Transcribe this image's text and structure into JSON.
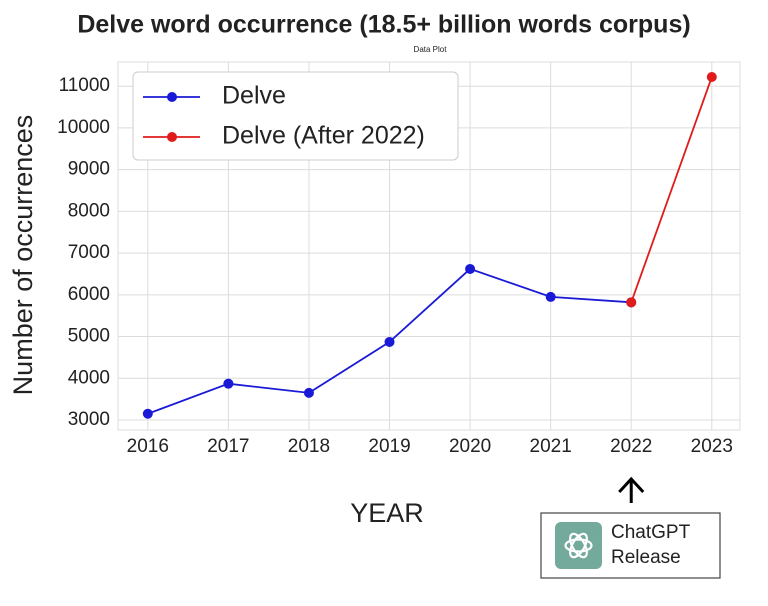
{
  "chart_data": {
    "type": "line",
    "title": "Delve word occurrence (18.5+ billion words corpus)",
    "subtitle": "Data Plot",
    "x_label": "YEAR",
    "y_label": "Number of occurrences",
    "x": [
      2016,
      2017,
      2018,
      2019,
      2020,
      2021,
      2022,
      2023
    ],
    "series": [
      {
        "name": "Delve",
        "color": "#1a1ad6",
        "values": [
          3150,
          3870,
          3650,
          4870,
          6620,
          5950,
          5820,
          null
        ]
      },
      {
        "name": "Delve (After 2022)",
        "color": "#e01b1b",
        "values": [
          null,
          null,
          null,
          null,
          null,
          null,
          5820,
          11220
        ]
      }
    ],
    "xlim": [
      2015.63,
      2023.35
    ],
    "xticks": [
      2016,
      2017,
      2018,
      2019,
      2020,
      2021,
      2022,
      2023
    ],
    "ylim": [
      2760,
      11580
    ],
    "yticks": [
      3000,
      4000,
      5000,
      6000,
      7000,
      8000,
      9000,
      10000,
      11000
    ],
    "grid": true,
    "legend": "upper left",
    "annotation": {
      "x": 2022,
      "lines": [
        "ChatGPT",
        "Release"
      ]
    }
  }
}
